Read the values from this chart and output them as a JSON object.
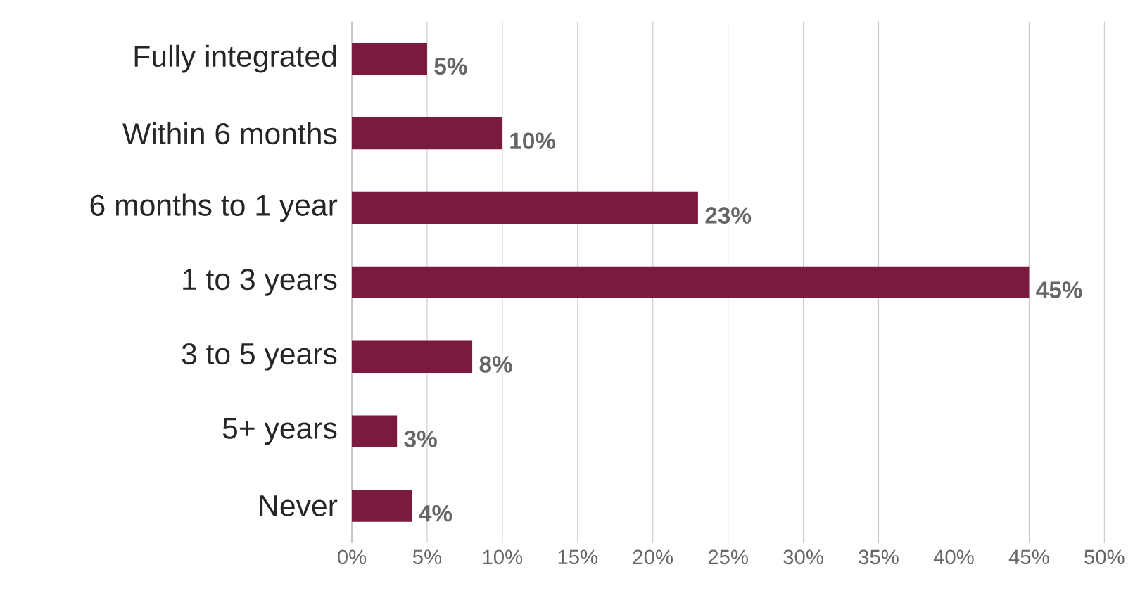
{
  "chart_data": {
    "type": "bar",
    "orientation": "horizontal",
    "categories": [
      "Fully integrated",
      "Within 6 months",
      "6 months to 1 year",
      "1 to 3 years",
      "3 to 5 years",
      "5+ years",
      "Never"
    ],
    "values": [
      5,
      10,
      23,
      45,
      8,
      3,
      4
    ],
    "value_labels": [
      "5%",
      "10%",
      "23%",
      "45%",
      "8%",
      "3%",
      "4%"
    ],
    "color": "#7a1a3e",
    "xlim": [
      0,
      50
    ],
    "xticks": [
      {
        "value": 0,
        "label": "0%"
      },
      {
        "value": 5,
        "label": "5%"
      },
      {
        "value": 10,
        "label": "10%"
      },
      {
        "value": 15,
        "label": "15%"
      },
      {
        "value": 20,
        "label": "20%"
      },
      {
        "value": 25,
        "label": "25%"
      },
      {
        "value": 30,
        "label": "30%"
      },
      {
        "value": 35,
        "label": "35%"
      },
      {
        "value": 40,
        "label": "40%"
      },
      {
        "value": 45,
        "label": "45%"
      },
      {
        "value": 50,
        "label": "50%"
      }
    ],
    "grid": "x"
  }
}
